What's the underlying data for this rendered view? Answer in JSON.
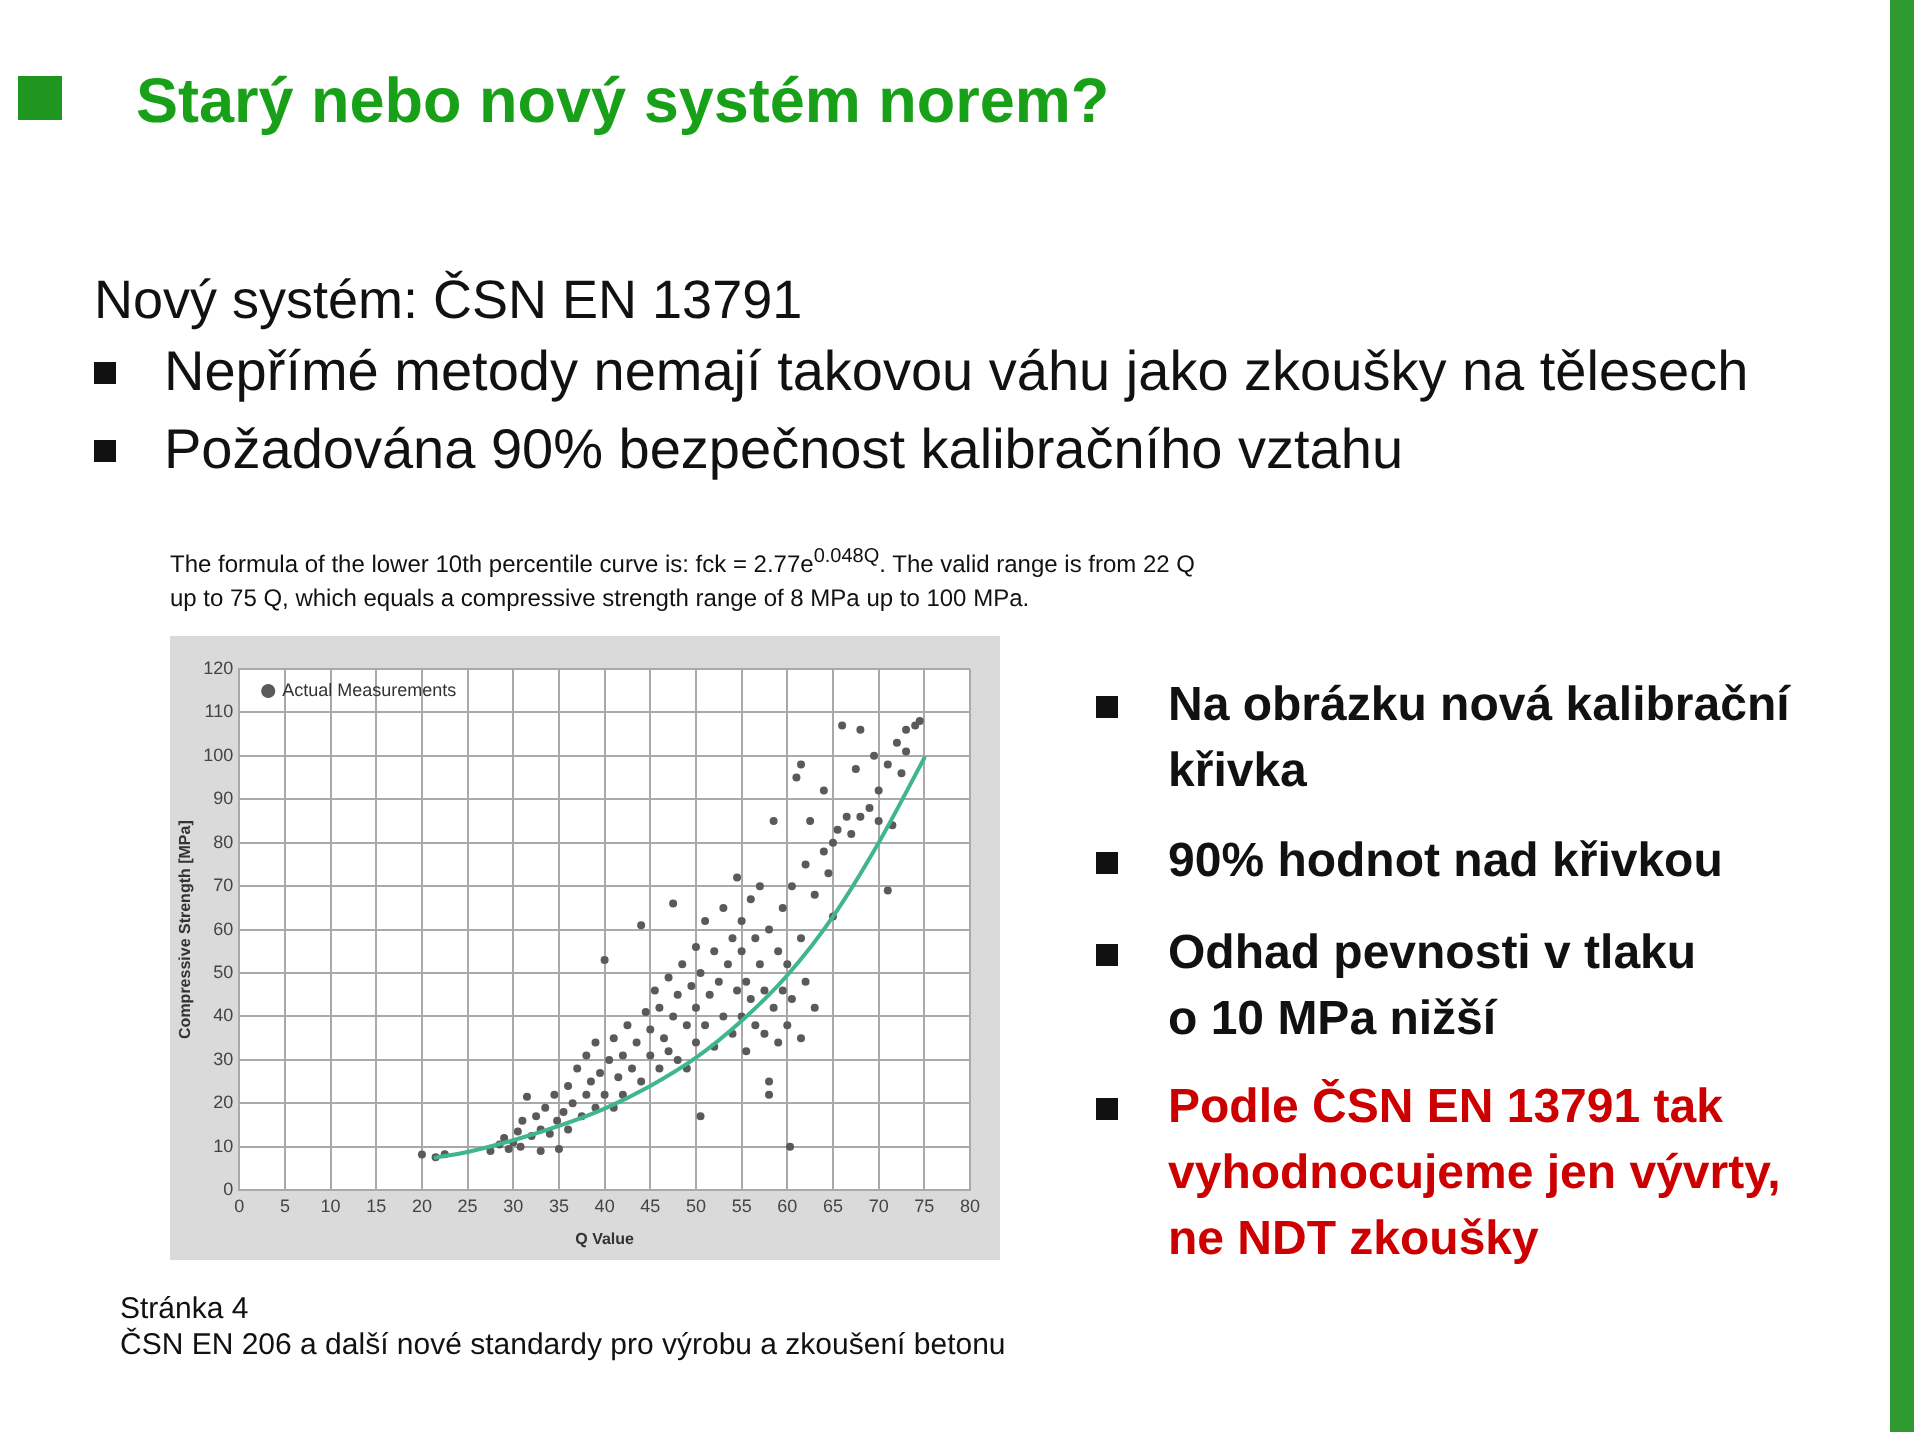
{
  "chart_data": {
    "type": "scatter",
    "title": "Starý nebo nový systém norem?",
    "xlabel": "Q Value",
    "ylabel": "Compressive Strength [MPa]",
    "xlim": [
      0,
      80
    ],
    "xticks": [
      0,
      5,
      10,
      15,
      20,
      25,
      30,
      35,
      40,
      45,
      50,
      55,
      60,
      65,
      70,
      75,
      80
    ],
    "ylim": [
      0,
      120
    ],
    "yticks": [
      0,
      10,
      20,
      30,
      40,
      50,
      60,
      70,
      80,
      90,
      100,
      110,
      120
    ],
    "grid": true,
    "legend": "top left",
    "series": [
      {
        "name": "Actual Measurements",
        "color": "#5a5a5a",
        "marker": "circle",
        "x": [
          20,
          21.5,
          22.5,
          27.5,
          28.5,
          29,
          29.5,
          30,
          30.5,
          30.8,
          31,
          31.5,
          32,
          32.5,
          33,
          33,
          33.5,
          34,
          34.5,
          34.8,
          35,
          35.5,
          36,
          36,
          36.5,
          37,
          37.5,
          38,
          38,
          38.5,
          39,
          39,
          39.5,
          40,
          40,
          40.5,
          41,
          41,
          41.5,
          42,
          42,
          42.5,
          43,
          43.5,
          44,
          44,
          44.5,
          45,
          45,
          45.5,
          46,
          46,
          46.5,
          47,
          47,
          47.5,
          47.5,
          48,
          48,
          48.5,
          49,
          49,
          49.5,
          50,
          50,
          50,
          50.5,
          51,
          51,
          50.5,
          51.5,
          52,
          52,
          52.5,
          53,
          53,
          53.5,
          54,
          54,
          54.5,
          54.5,
          55,
          55,
          55,
          55.5,
          55.5,
          56,
          56,
          56.5,
          56.5,
          57,
          57,
          57.5,
          57.5,
          58,
          58,
          58,
          58.5,
          58.5,
          59,
          59,
          59.5,
          59.5,
          60,
          60,
          60.3,
          60.5,
          60.5,
          61,
          61.5,
          61.5,
          61.5,
          62,
          62,
          62.5,
          63,
          63,
          64,
          64,
          64.5,
          65,
          65,
          65.5,
          66,
          66.5,
          67,
          67.5,
          68,
          68,
          69,
          69.5,
          70,
          70,
          71,
          71,
          71.5,
          72,
          72.5,
          73,
          73,
          74,
          74.5
        ],
        "values": [
          8.2,
          7.6,
          8.3,
          9,
          10.5,
          12,
          9.5,
          11,
          13.5,
          10,
          16,
          21.5,
          12.5,
          17,
          14,
          9,
          19,
          13,
          22,
          16,
          9.5,
          18,
          24,
          14,
          20,
          28,
          17,
          22,
          31,
          25,
          19,
          34,
          27,
          22,
          53,
          30,
          19,
          35,
          26,
          31,
          22,
          38,
          28,
          34,
          25,
          61,
          41,
          31,
          37,
          46,
          28,
          42,
          35,
          49,
          32,
          66,
          40,
          45,
          30,
          52,
          38,
          28,
          47,
          42,
          56,
          34,
          50,
          38,
          62,
          17,
          45,
          55,
          33,
          48,
          40,
          65,
          52,
          36,
          58,
          46,
          72,
          40,
          55,
          62,
          32,
          48,
          67,
          44,
          58,
          38,
          52,
          70,
          46,
          36,
          60,
          22,
          25,
          42,
          85,
          55,
          34,
          65,
          46,
          52,
          38,
          10,
          70,
          44,
          95,
          98,
          58,
          35,
          75,
          48,
          85,
          68,
          42,
          78,
          92,
          73,
          80,
          63,
          83,
          107,
          86,
          82,
          97,
          86,
          106,
          88,
          100,
          92,
          85,
          69,
          98,
          84,
          103,
          96,
          106,
          101,
          107,
          108
        ]
      },
      {
        "type": "line",
        "color": "#3fb68b",
        "marker": "none",
        "x": [
          21.5,
          25,
          30,
          35,
          40,
          45,
          50,
          55,
          60,
          65,
          70,
          75
        ],
        "values": [
          7.5,
          8.8,
          11.5,
          14.8,
          18.8,
          24,
          30.5,
          39,
          49.5,
          63,
          80,
          99.5
        ]
      }
    ],
    "annotations": [
      "Nový systém: ČSN EN 13791",
      "Nepřímé metody nemají takovou váhu jako zkoušky na tělesech",
      "Požadována 90% bezpečnost kalibračního vztahu",
      "The formula of the lower 10th percentile curve is: fck = 2.77e$^{0.048Q}$. The valid range is from 22 Q up to 75 Q, which equals a compressive strength range of 8 MPa up to 100 MPa.",
      "Na obrázku nová kalibrační křivka",
      "90% hodnot nad křivkou",
      "Odhad pevnosti v tlaku o 10 MPa nižší",
      "Podle ČSN EN 13791 tak vyhodnocujeme jen vývrty, ne NDT zkoušky",
      "Stránka 4",
      "ČSN EN 206 a další nové standardy pro výrobu a zkoušení betonu"
    ]
  }
}
